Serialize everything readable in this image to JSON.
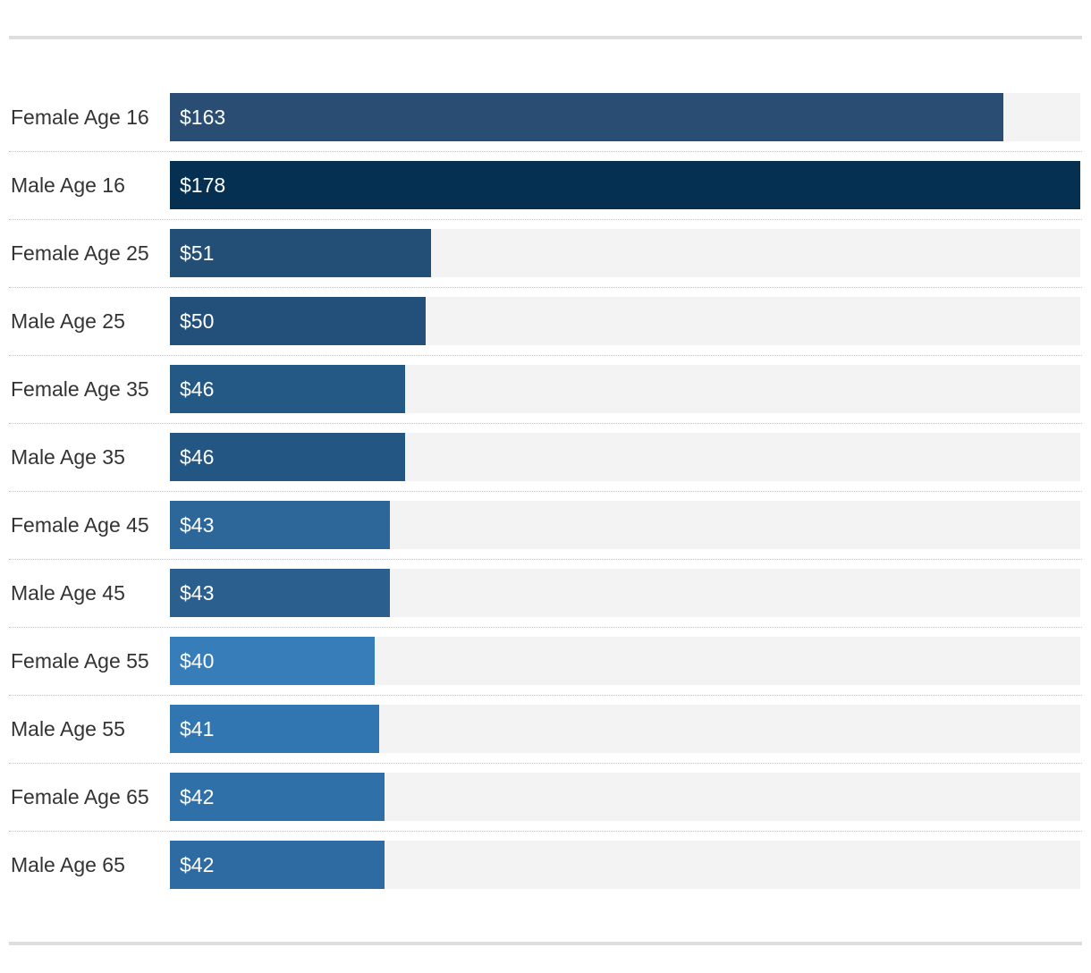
{
  "chart_data": {
    "type": "bar",
    "orientation": "horizontal",
    "title": "",
    "xlabel": "",
    "ylabel": "",
    "xlim": [
      0,
      178
    ],
    "grid": false,
    "legend": "none",
    "categories": [
      "Female Age 16",
      "Male Age 16",
      "Female Age 25",
      "Male Age 25",
      "Female Age 35",
      "Male Age 35",
      "Female Age 45",
      "Male Age 45",
      "Female Age 55",
      "Male Age 55",
      "Female Age 65",
      "Male Age 65"
    ],
    "values": [
      163,
      178,
      51,
      50,
      46,
      46,
      43,
      43,
      40,
      41,
      42,
      42
    ],
    "value_labels": [
      "$163",
      "$178",
      "$51",
      "$50",
      "$46",
      "$46",
      "$43",
      "$43",
      "$40",
      "$41",
      "$42",
      "$42"
    ],
    "colors": [
      "#2a4e73",
      "#053052",
      "#234f76",
      "#23507a",
      "#245986",
      "#235682",
      "#2d6698",
      "#2b5f8e",
      "#377dba",
      "#3276b1",
      "#2f70a8",
      "#2e6ba2"
    ]
  }
}
